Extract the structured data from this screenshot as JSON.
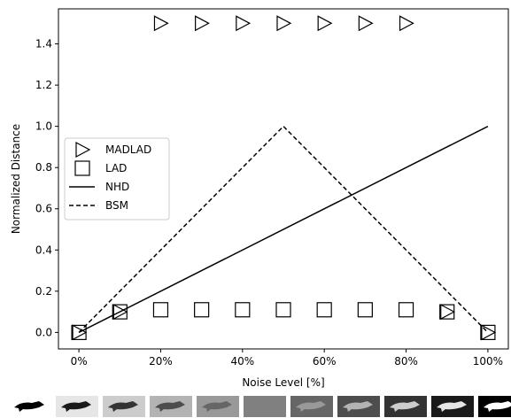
{
  "chart_data": {
    "type": "line",
    "xlabel": "Noise Level [%]",
    "ylabel": "Normalized Distance",
    "xlim": [
      -0.05,
      1.05
    ],
    "ylim": [
      -0.08,
      1.57
    ],
    "xticks": [
      0,
      0.2,
      0.4,
      0.6,
      0.8,
      1.0
    ],
    "xtick_labels": [
      "0%",
      "20%",
      "40%",
      "60%",
      "80%",
      "100%"
    ],
    "yticks": [
      0.0,
      0.2,
      0.4,
      0.6,
      0.8,
      1.0,
      1.2,
      1.4
    ],
    "ytick_labels": [
      "0.0",
      "0.2",
      "0.4",
      "0.6",
      "0.8",
      "1.0",
      "1.2",
      "1.4"
    ],
    "grid": false,
    "legend_position": "center-left",
    "series": [
      {
        "name": "MADLAD",
        "marker": "triangle-right",
        "line": "none",
        "x": [
          0.0,
          0.1,
          0.2,
          0.3,
          0.4,
          0.5,
          0.6,
          0.7,
          0.8,
          0.9,
          1.0
        ],
        "y": [
          0.0,
          0.1,
          1.5,
          1.5,
          1.5,
          1.5,
          1.5,
          1.5,
          1.5,
          0.1,
          0.0
        ]
      },
      {
        "name": "LAD",
        "marker": "square",
        "line": "none",
        "x": [
          0.0,
          0.1,
          0.2,
          0.3,
          0.4,
          0.5,
          0.6,
          0.7,
          0.8,
          0.9,
          1.0
        ],
        "y": [
          0.0,
          0.1,
          0.11,
          0.11,
          0.11,
          0.11,
          0.11,
          0.11,
          0.11,
          0.1,
          0.0
        ]
      },
      {
        "name": "NHD",
        "marker": "none",
        "line": "solid",
        "x": [
          0.0,
          1.0
        ],
        "y": [
          0.0,
          1.0
        ]
      },
      {
        "name": "BSM",
        "marker": "none",
        "line": "dashed",
        "x": [
          0.0,
          0.5,
          1.0
        ],
        "y": [
          0.0,
          1.0,
          0.0
        ]
      }
    ],
    "thumbnails": {
      "noise_levels": [
        0.0,
        0.1,
        0.2,
        0.3,
        0.4,
        0.5,
        0.6,
        0.7,
        0.8,
        0.9,
        1.0
      ],
      "background_gray": [
        1.0,
        0.9,
        0.8,
        0.7,
        0.6,
        0.5,
        0.4,
        0.3,
        0.2,
        0.1,
        0.0
      ],
      "silhouette_gray": [
        0.0,
        0.1,
        0.2,
        0.3,
        0.4,
        0.5,
        0.6,
        0.7,
        0.8,
        0.9,
        1.0
      ]
    }
  }
}
